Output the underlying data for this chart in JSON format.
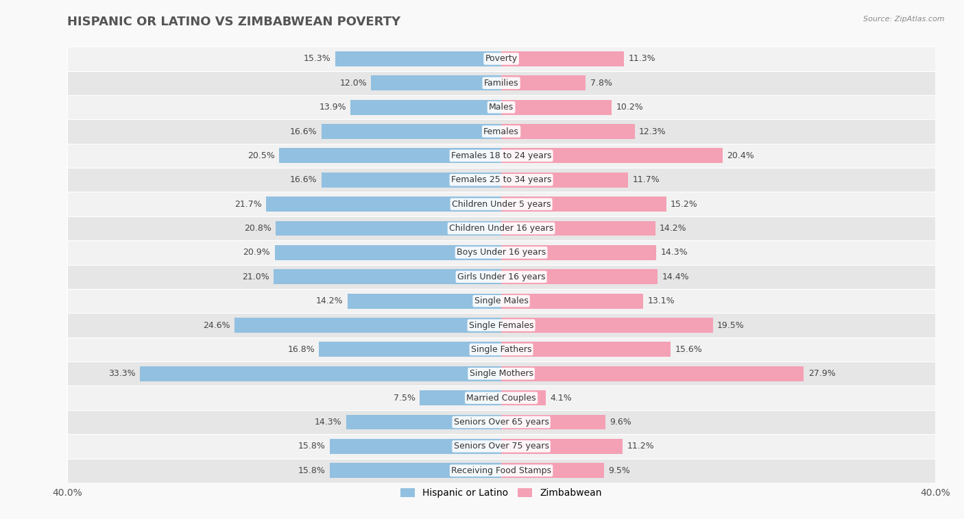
{
  "title": "HISPANIC OR LATINO VS ZIMBABWEAN POVERTY",
  "source": "Source: ZipAtlas.com",
  "categories": [
    "Poverty",
    "Families",
    "Males",
    "Females",
    "Females 18 to 24 years",
    "Females 25 to 34 years",
    "Children Under 5 years",
    "Children Under 16 years",
    "Boys Under 16 years",
    "Girls Under 16 years",
    "Single Males",
    "Single Females",
    "Single Fathers",
    "Single Mothers",
    "Married Couples",
    "Seniors Over 65 years",
    "Seniors Over 75 years",
    "Receiving Food Stamps"
  ],
  "hispanic_values": [
    15.3,
    12.0,
    13.9,
    16.6,
    20.5,
    16.6,
    21.7,
    20.8,
    20.9,
    21.0,
    14.2,
    24.6,
    16.8,
    33.3,
    7.5,
    14.3,
    15.8,
    15.8
  ],
  "zimbabwean_values": [
    11.3,
    7.8,
    10.2,
    12.3,
    20.4,
    11.7,
    15.2,
    14.2,
    14.3,
    14.4,
    13.1,
    19.5,
    15.6,
    27.9,
    4.1,
    9.6,
    11.2,
    9.5
  ],
  "hispanic_color": "#92c0e0",
  "zimbabwean_color": "#f4a0b5",
  "row_color_light": "#f2f2f2",
  "row_color_dark": "#e6e6e6",
  "fig_bg": "#f9f9f9",
  "axis_limit": 40.0,
  "label_fontsize": 9,
  "title_fontsize": 13,
  "legend_label_hispanic": "Hispanic or Latino",
  "legend_label_zimbabwean": "Zimbabwean"
}
